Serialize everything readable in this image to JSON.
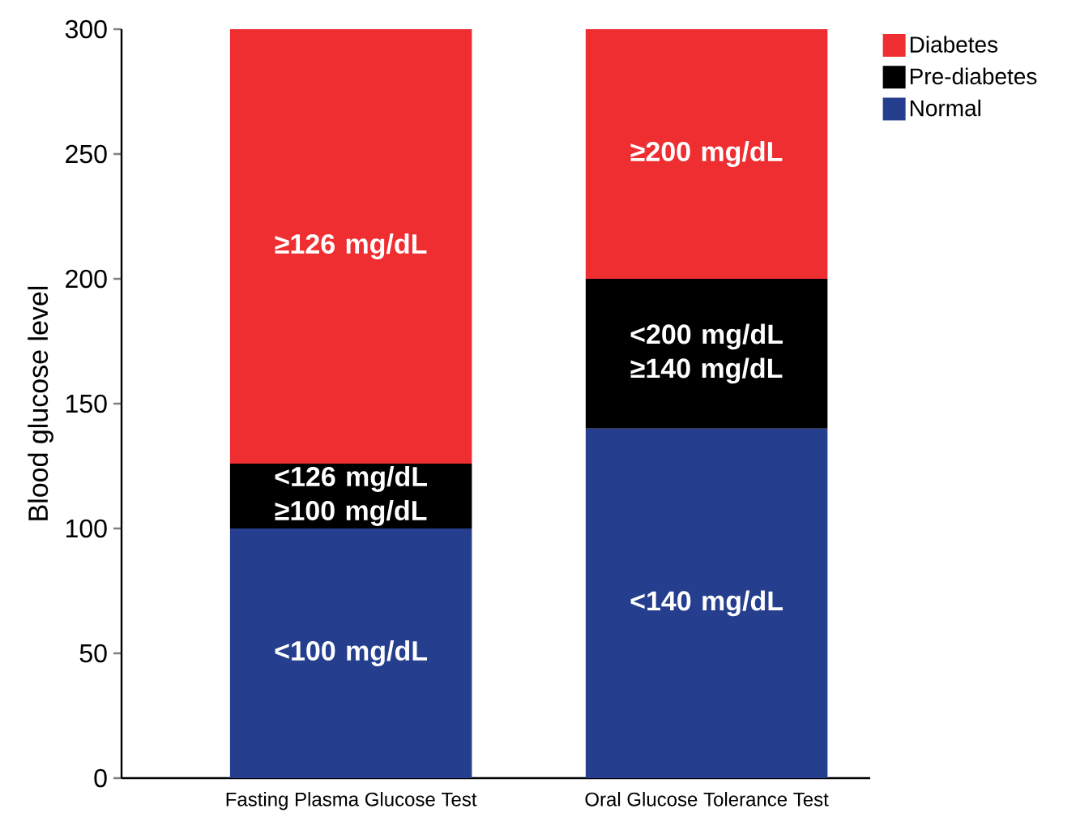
{
  "chart_data": {
    "type": "bar",
    "stacked": true,
    "ylabel": "Blood glucose level",
    "categories": [
      "Fasting Plasma Glucose Test",
      "Oral Glucose Tolerance Test"
    ],
    "series": [
      {
        "name": "Normal",
        "color": "#253f8e",
        "values": [
          100,
          140
        ],
        "value_labels": [
          "<100 mg/dL",
          "<140 mg/dL"
        ]
      },
      {
        "name": "Pre-diabetes",
        "color": "#000000",
        "values": [
          26,
          60
        ],
        "value_labels": [
          "<126 mg/dL ≥100 mg/dL",
          "<200 mg/dL ≥140 mg/dL"
        ]
      },
      {
        "name": "Diabetes",
        "color": "#ee2e31",
        "values": [
          174,
          100
        ],
        "value_labels": [
          "≥126 mg/dL",
          "≥200 mg/dL"
        ]
      }
    ],
    "ylim": [
      0,
      300
    ],
    "yticks": [
      0,
      50,
      100,
      150,
      200,
      250,
      300
    ],
    "legend": "top right",
    "grid": false
  }
}
